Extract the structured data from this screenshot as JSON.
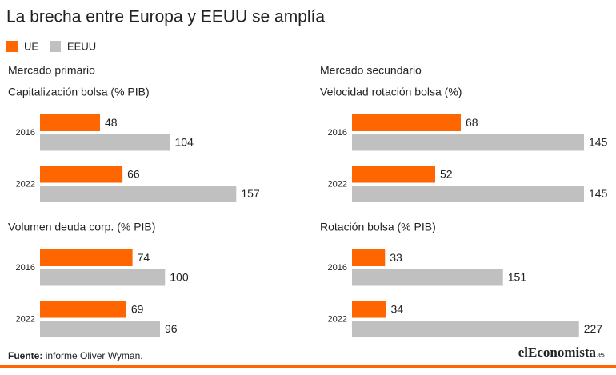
{
  "title": "La brecha entre Europa y EEUU se amplía",
  "sections": [
    "Mercado primario",
    "Mercado secundario"
  ],
  "source": {
    "label": "Fuente:",
    "text": "informe Oliver Wyman."
  },
  "logo": "elEconomista",
  "logo_suffix": ".es",
  "chart_data": [
    {
      "type": "barh",
      "title": "Capitalización bolsa (% PIB)",
      "categories": [
        "2016",
        "2022"
      ],
      "xlim": [
        0,
        160
      ],
      "series": [
        {
          "name": "UE",
          "color": "#ff6600",
          "values": [
            48,
            66
          ]
        },
        {
          "name": "EEUU",
          "color": "#c0c0c0",
          "values": [
            104,
            157
          ]
        }
      ]
    },
    {
      "type": "barh",
      "title": "Velocidad rotación bolsa (%)",
      "categories": [
        "2016",
        "2022"
      ],
      "xlim": [
        0,
        150
      ],
      "series": [
        {
          "name": "UE",
          "color": "#ff6600",
          "values": [
            68,
            52
          ]
        },
        {
          "name": "EEUU",
          "color": "#c0c0c0",
          "values": [
            145,
            145
          ]
        }
      ]
    },
    {
      "type": "barh",
      "title": "Volumen deuda corp. (% PIB)",
      "categories": [
        "2016",
        "2022"
      ],
      "xlim": [
        0,
        160
      ],
      "series": [
        {
          "name": "UE",
          "color": "#ff6600",
          "values": [
            74,
            69
          ]
        },
        {
          "name": "EEUU",
          "color": "#c0c0c0",
          "values": [
            100,
            96
          ]
        }
      ]
    },
    {
      "type": "barh",
      "title": "Rotación bolsa (% PIB)",
      "categories": [
        "2016",
        "2022"
      ],
      "xlim": [
        0,
        240
      ],
      "series": [
        {
          "name": "UE",
          "color": "#ff6600",
          "values": [
            33,
            34
          ]
        },
        {
          "name": "EEUU",
          "color": "#c0c0c0",
          "values": [
            151,
            227
          ]
        }
      ]
    }
  ]
}
